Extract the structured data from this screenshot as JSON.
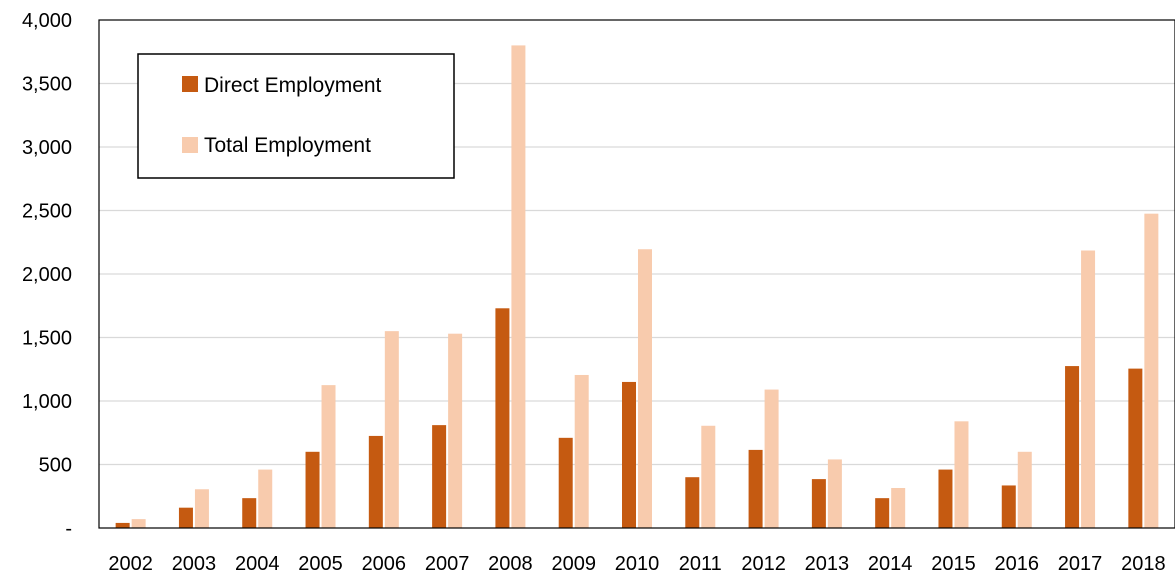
{
  "chart_data": {
    "type": "bar",
    "categories": [
      "2002",
      "2003",
      "2004",
      "2005",
      "2006",
      "2007",
      "2008",
      "2009",
      "2010",
      "2011",
      "2012",
      "2013",
      "2014",
      "2015",
      "2016",
      "2017",
      "2018"
    ],
    "series": [
      {
        "name": "Direct Employment",
        "color": "#c55a11",
        "values": [
          40,
          160,
          235,
          600,
          725,
          810,
          1730,
          710,
          1150,
          400,
          615,
          385,
          235,
          460,
          335,
          1275,
          1255
        ]
      },
      {
        "name": "Total Employment",
        "color": "#f8cbad",
        "values": [
          70,
          305,
          460,
          1125,
          1550,
          1530,
          3800,
          1205,
          2195,
          805,
          1090,
          540,
          315,
          840,
          600,
          2185,
          2475
        ]
      }
    ],
    "ylim": [
      0,
      4000
    ],
    "yticks": [
      0,
      500,
      1000,
      1500,
      2000,
      2500,
      3000,
      3500,
      4000
    ],
    "ytick_labels": [
      "-",
      "500",
      "1,000",
      "1,500",
      "2,000",
      "2,500",
      "3,000",
      "3,500",
      "4,000"
    ],
    "title": "",
    "xlabel": "",
    "ylabel": "",
    "grid": true,
    "legend": "top-left"
  }
}
